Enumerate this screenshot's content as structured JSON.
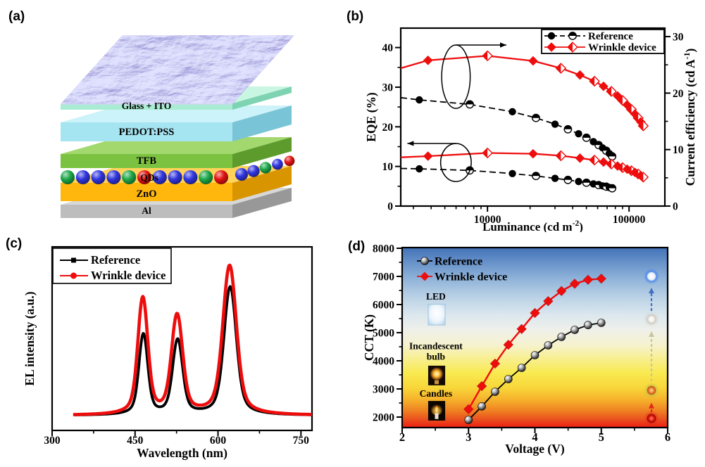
{
  "figure": {
    "background": "#ffffff",
    "accent_red": "#ee0d0d",
    "ink": "#000000"
  },
  "panel_labels": {
    "a": "(a)",
    "b": "(b)",
    "c": "(c)",
    "d": "(d)"
  },
  "device_stack": {
    "layers": [
      {
        "name": "Al",
        "front": "#bdbdbd",
        "top": "#d8d8d8",
        "side": "#989898"
      },
      {
        "name": "ZnO",
        "front": "#ffb60d",
        "top": "#ffd35a",
        "side": "#d89500"
      },
      {
        "name": "TFB",
        "front": "#7cc241",
        "top": "#a2d86e",
        "side": "#5d9c2c"
      },
      {
        "name": "PEDOT:PSS",
        "front": "#a5e5f1",
        "top": "#ccf2fa",
        "side": "#79c4d6"
      },
      {
        "name": "Glass + ITO",
        "front": "#a9ecd3",
        "top": "#c9f5e3",
        "side": "#7ed3b3"
      }
    ],
    "qd_layer": {
      "label": "QDs",
      "front_colors": [
        "green",
        "blue",
        "blue",
        "blue",
        "green",
        "red",
        "blue",
        "blue",
        "blue",
        "green",
        "red"
      ],
      "side_colors": [
        "blue",
        "blue",
        "green",
        "blue",
        "red"
      ],
      "palette": {
        "green": "#1ea84a",
        "blue": "#3136e0",
        "red": "#e31212"
      }
    },
    "texture": {
      "description": "wrinkled blue-purple AFM-like top surface",
      "base": "#7f86e8"
    }
  },
  "chart_data": [
    {
      "id": "b",
      "type": "line",
      "x_axis": {
        "scale": "log",
        "min": 2440,
        "max": 179000,
        "label_text": "Luminance (cd m",
        "label_sup": "-2",
        "label_end": ")",
        "major_ticks": [
          10000,
          100000
        ]
      },
      "y_left": {
        "min": 0,
        "max": 44.9,
        "label_text": "EQE (%)",
        "label_sup": "",
        "label_end": "",
        "major_ticks": [
          0,
          10,
          20,
          30,
          40
        ],
        "minor_step": 5
      },
      "y_right": {
        "min": 0,
        "max": 31.5,
        "label_text": "Current efficiency (cd A",
        "label_sup": "-1",
        "label_end": ")",
        "major_ticks": [
          0,
          10,
          20,
          30
        ],
        "minor_step": 5
      },
      "legend": [
        {
          "label": "Reference",
          "color": "#000000",
          "marker": "circle",
          "line": "dashed"
        },
        {
          "label": "Wrinkle device",
          "color": "#ee0d0d",
          "marker": "diamond",
          "line": "solid"
        }
      ],
      "series": [
        {
          "name": "Reference current efficiency",
          "axis": "right",
          "color": "#000000",
          "marker": "circle",
          "line": "dashed",
          "x": [
            2440,
            3300,
            7500,
            15000,
            22000,
            30000,
            37000,
            44000,
            50000,
            56000,
            61000,
            65000,
            69000,
            72500,
            76000
          ],
          "y": [
            19.2,
            18.8,
            18.0,
            16.7,
            15.6,
            14.5,
            13.6,
            12.8,
            12.1,
            11.4,
            10.8,
            10.3,
            9.8,
            9.3,
            8.8
          ]
        },
        {
          "name": "Wrinkle device current efficiency",
          "axis": "right",
          "color": "#ee0d0d",
          "marker": "diamond",
          "line": "solid",
          "x": [
            2440,
            3800,
            10000,
            21000,
            33000,
            45000,
            57000,
            66000,
            75000,
            83000,
            90000,
            97000,
            104000,
            110000,
            116000,
            121000,
            126000
          ],
          "y": [
            24.4,
            25.8,
            26.6,
            25.7,
            24.4,
            23.2,
            22.1,
            21.2,
            20.3,
            19.5,
            18.7,
            17.9,
            17.1,
            16.3,
            15.6,
            14.9,
            14.2
          ]
        },
        {
          "name": "Reference EQE",
          "axis": "left",
          "color": "#000000",
          "marker": "circle",
          "line": "dashed",
          "x": [
            2440,
            3300,
            7500,
            15000,
            22000,
            30000,
            37000,
            44000,
            50000,
            56000,
            61000,
            65000,
            69000,
            72500,
            76000
          ],
          "y": [
            9.5,
            9.4,
            9.0,
            8.2,
            7.6,
            7.0,
            6.6,
            6.2,
            5.9,
            5.6,
            5.3,
            5.1,
            4.9,
            4.7,
            4.5
          ]
        },
        {
          "name": "Wrinkle device EQE",
          "axis": "left",
          "color": "#ee0d0d",
          "marker": "diamond",
          "line": "solid",
          "x": [
            2440,
            3800,
            10000,
            21000,
            33000,
            45000,
            57000,
            66000,
            75000,
            83000,
            90000,
            97000,
            104000,
            110000,
            116000,
            121000,
            126000
          ],
          "y": [
            12.3,
            12.6,
            13.4,
            13.2,
            12.7,
            12.1,
            11.6,
            11.1,
            10.6,
            10.1,
            9.7,
            9.3,
            8.9,
            8.5,
            8.1,
            7.7,
            7.3
          ]
        }
      ],
      "annotations": {
        "ellipses": [
          {
            "fx": 0.209,
            "fy": 0.273,
            "frx": 0.054,
            "fry": 0.178
          },
          {
            "fx": 0.209,
            "fy": 0.755,
            "frx": 0.058,
            "fry": 0.107
          }
        ],
        "arrows": [
          {
            "x1f": 0.209,
            "y1f": 0.095,
            "x2f": 0.4,
            "y2f": 0.095
          },
          {
            "x1f": 0.209,
            "y1f": 0.648,
            "x2f": 0.025,
            "y2f": 0.648
          }
        ]
      }
    },
    {
      "id": "c",
      "type": "line",
      "x_axis": {
        "min": 300,
        "max": 770,
        "label_text": "Wavelength (nm)",
        "label_sup": "",
        "label_end": "",
        "major_ticks": [
          300,
          450,
          600,
          750
        ],
        "minor_ticks": [
          375,
          525,
          675
        ]
      },
      "y_axis": {
        "min": -0.1,
        "max": 1.13,
        "label_text": "EL intensity (a.u.)"
      },
      "legend": [
        {
          "label": "Reference",
          "color": "#000000",
          "marker": "square"
        },
        {
          "label": "Wrinkle device",
          "color": "#ee0d0d",
          "marker": "circle"
        }
      ],
      "series": [
        {
          "name": "Reference",
          "color": "#000000",
          "stroke_width": 3.8,
          "domain": [
            340,
            770
          ],
          "peaks": [
            {
              "center": 465,
              "height": 0.54,
              "width": 7.5
            },
            {
              "center": 527,
              "height": 0.5,
              "width": 8.5
            },
            {
              "center": 622,
              "height": 0.86,
              "width": 10.5
            }
          ]
        },
        {
          "name": "Wrinkle device",
          "color": "#ee0d0d",
          "stroke_width": 4.6,
          "domain": [
            338,
            770
          ],
          "peaks": [
            {
              "center": 464,
              "height": 0.78,
              "width": 8.5
            },
            {
              "center": 526,
              "height": 0.66,
              "width": 9.5
            },
            {
              "center": 621,
              "height": 1.0,
              "width": 11.5
            }
          ]
        }
      ]
    },
    {
      "id": "d",
      "type": "line",
      "x_axis": {
        "min": 2,
        "max": 6,
        "label_text": "Voltage (V)",
        "label_sup": "",
        "label_end": "",
        "major_ticks": [
          2,
          3,
          4,
          5,
          6
        ],
        "minor_step": 0.5
      },
      "y_axis": {
        "min": 1625,
        "max": 8025,
        "label_text": "CCT (K)",
        "major_ticks": [
          2000,
          3000,
          4000,
          5000,
          6000,
          7000,
          8000
        ],
        "minor_step": 500
      },
      "legend": [
        {
          "label": "Reference",
          "color": "#000000",
          "marker": "sphere"
        },
        {
          "label": "Wrinkle device",
          "color": "#ee0d0d",
          "marker": "diamond"
        }
      ],
      "series": [
        {
          "name": "Reference",
          "color": "#000000",
          "marker": "sphere",
          "x": [
            3.0,
            3.2,
            3.4,
            3.6,
            3.8,
            4.0,
            4.2,
            4.4,
            4.6,
            4.8,
            5.0
          ],
          "y": [
            1900,
            2380,
            2900,
            3350,
            3750,
            4200,
            4550,
            4850,
            5100,
            5270,
            5350
          ]
        },
        {
          "name": "Wrinkle device",
          "color": "#ee0d0d",
          "marker": "diamond",
          "x": [
            3.0,
            3.2,
            3.4,
            3.6,
            3.8,
            4.0,
            4.2,
            4.4,
            4.6,
            4.8,
            5.0
          ],
          "y": [
            2280,
            3100,
            3900,
            4570,
            5130,
            5700,
            6120,
            6480,
            6740,
            6880,
            6920
          ]
        }
      ],
      "background_stops": [
        [
          0.0,
          "#4272b8"
        ],
        [
          0.08,
          "#6691c9"
        ],
        [
          0.18,
          "#92b5da"
        ],
        [
          0.28,
          "#bcd3e6"
        ],
        [
          0.38,
          "#dde8ee"
        ],
        [
          0.46,
          "#eff0e9"
        ],
        [
          0.54,
          "#f6f2cf"
        ],
        [
          0.62,
          "#f8ef8d"
        ],
        [
          0.7,
          "#f9e94f"
        ],
        [
          0.78,
          "#f8d63a"
        ],
        [
          0.85,
          "#f5ae2a"
        ],
        [
          0.91,
          "#ef7d22"
        ],
        [
          0.96,
          "#ea4a1e"
        ],
        [
          1.0,
          "#ec1c12"
        ]
      ],
      "insets": [
        {
          "lines": [
            "LED"
          ],
          "label_fx": 0.127,
          "label_fy": 0.29,
          "img": "led",
          "img_fx": 0.098,
          "img_fy": 0.315,
          "img_wf": 0.064,
          "img_hf": 0.115
        },
        {
          "lines": [
            "Incandescent",
            "bulb"
          ],
          "label_fx": 0.127,
          "label_fy": 0.565,
          "img": "bulb",
          "img_fx": 0.098,
          "img_fy": 0.656,
          "img_wf": 0.064,
          "img_hf": 0.109
        },
        {
          "lines": [
            "Candles"
          ],
          "label_fx": 0.127,
          "label_fy": 0.828,
          "img": "candle",
          "img_fx": 0.098,
          "img_fy": 0.852,
          "img_wf": 0.064,
          "img_hf": 0.109
        }
      ],
      "cct_scale_markers": {
        "fx": 0.939,
        "items": [
          {
            "type": "red",
            "fy": 0.949
          },
          {
            "type": "orange",
            "fy": 0.793
          },
          {
            "type": "warm-white",
            "fy": 0.398
          },
          {
            "type": "cool-white",
            "fy": 0.16
          }
        ],
        "arrows": [
          {
            "color": "#dd2b16",
            "fy1": 0.914,
            "fy2": 0.862
          },
          {
            "color": "#c9c49c",
            "fy1": 0.742,
            "fy2": 0.465
          },
          {
            "color": "#3f6fc0",
            "fy1": 0.352,
            "fy2": 0.223
          }
        ]
      }
    }
  ]
}
